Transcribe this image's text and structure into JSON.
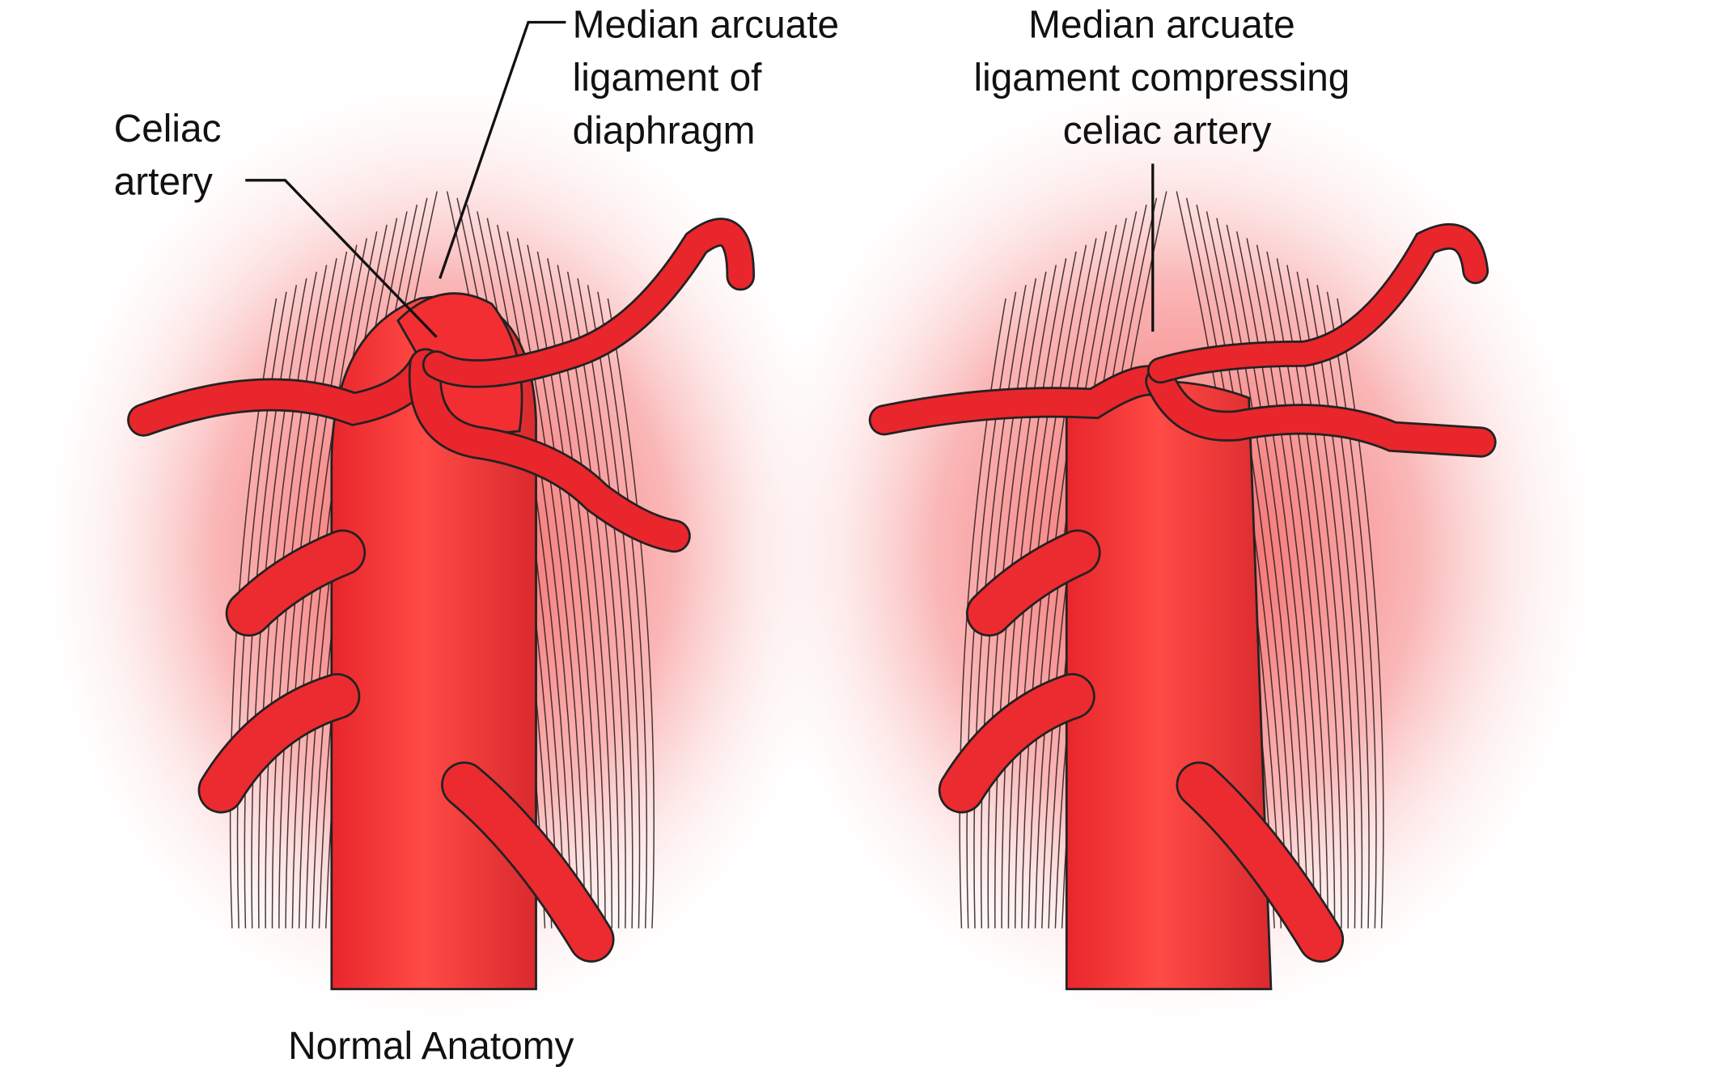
{
  "panels": [
    {
      "labels": [
        {
          "lines": [
            "Celiac",
            "artery"
          ]
        },
        {
          "lines": [
            "Median arcuate",
            "ligament of",
            "diaphragm"
          ]
        }
      ],
      "caption": "Normal Anatomy"
    },
    {
      "labels": [
        {
          "lines": [
            "Median arcuate",
            "ligament compressing",
            "celiac artery"
          ]
        }
      ]
    }
  ]
}
